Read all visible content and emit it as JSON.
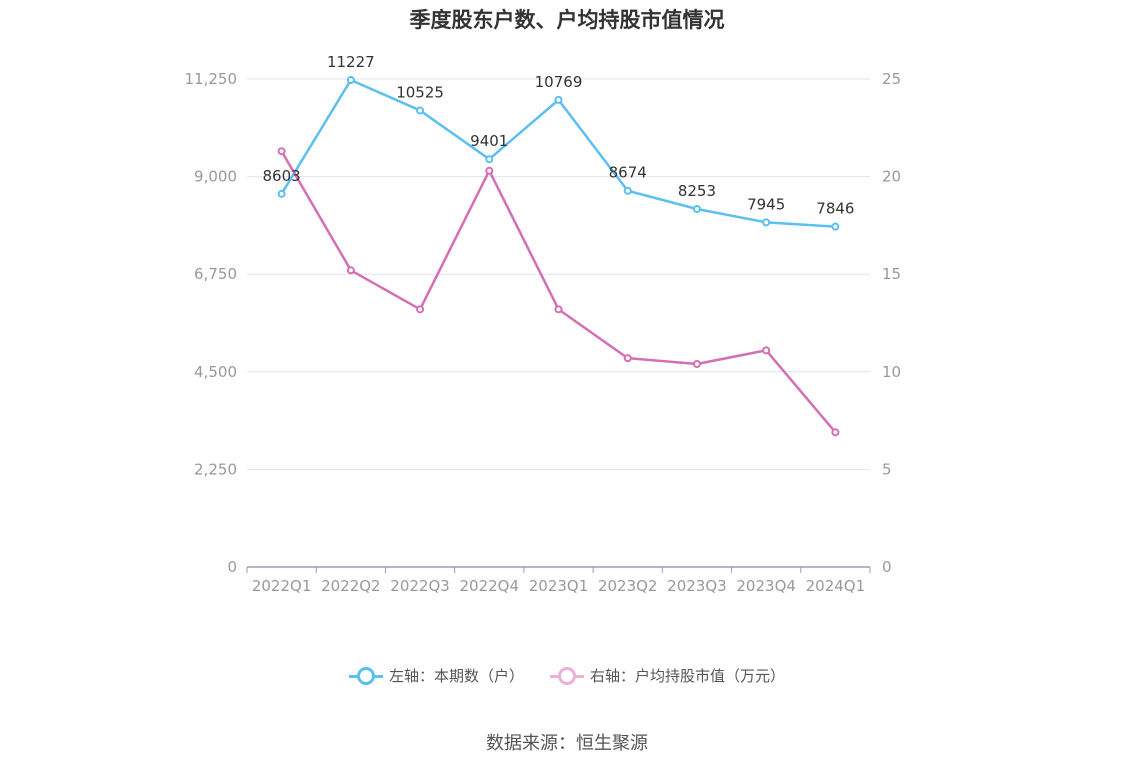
{
  "chart_data": {
    "type": "line",
    "title": "季度股东户数、户均持股市值情况",
    "categories": [
      "2022Q1",
      "2022Q2",
      "2022Q3",
      "2022Q4",
      "2023Q1",
      "2023Q2",
      "2023Q3",
      "2023Q4",
      "2024Q1"
    ],
    "y_left": {
      "ticks": [
        "0",
        "2,250",
        "4,500",
        "6,750",
        "9,000",
        "11,250"
      ],
      "range": [
        0,
        11250
      ]
    },
    "y_right": {
      "ticks": [
        "0",
        "5",
        "10",
        "15",
        "20",
        "25"
      ],
      "range": [
        0,
        25
      ]
    },
    "series": [
      {
        "name": "左轴：本期数（户）",
        "axis": "left",
        "color": "#5bc0ef",
        "values": [
          8603,
          11227,
          10525,
          9401,
          10769,
          8674,
          8253,
          7945,
          7846
        ],
        "labels": [
          "8603",
          "11227",
          "10525",
          "9401",
          "10769",
          "8674",
          "8253",
          "7945",
          "7846"
        ]
      },
      {
        "name": "右轴：户均持股市值（万元）",
        "axis": "right",
        "color": "#d36fb4",
        "values": [
          21.3,
          15.2,
          13.2,
          20.3,
          13.2,
          10.7,
          10.4,
          11.1,
          6.9
        ]
      }
    ],
    "grid": true,
    "legend_position": "bottom"
  },
  "source": "数据来源：恒生聚源"
}
